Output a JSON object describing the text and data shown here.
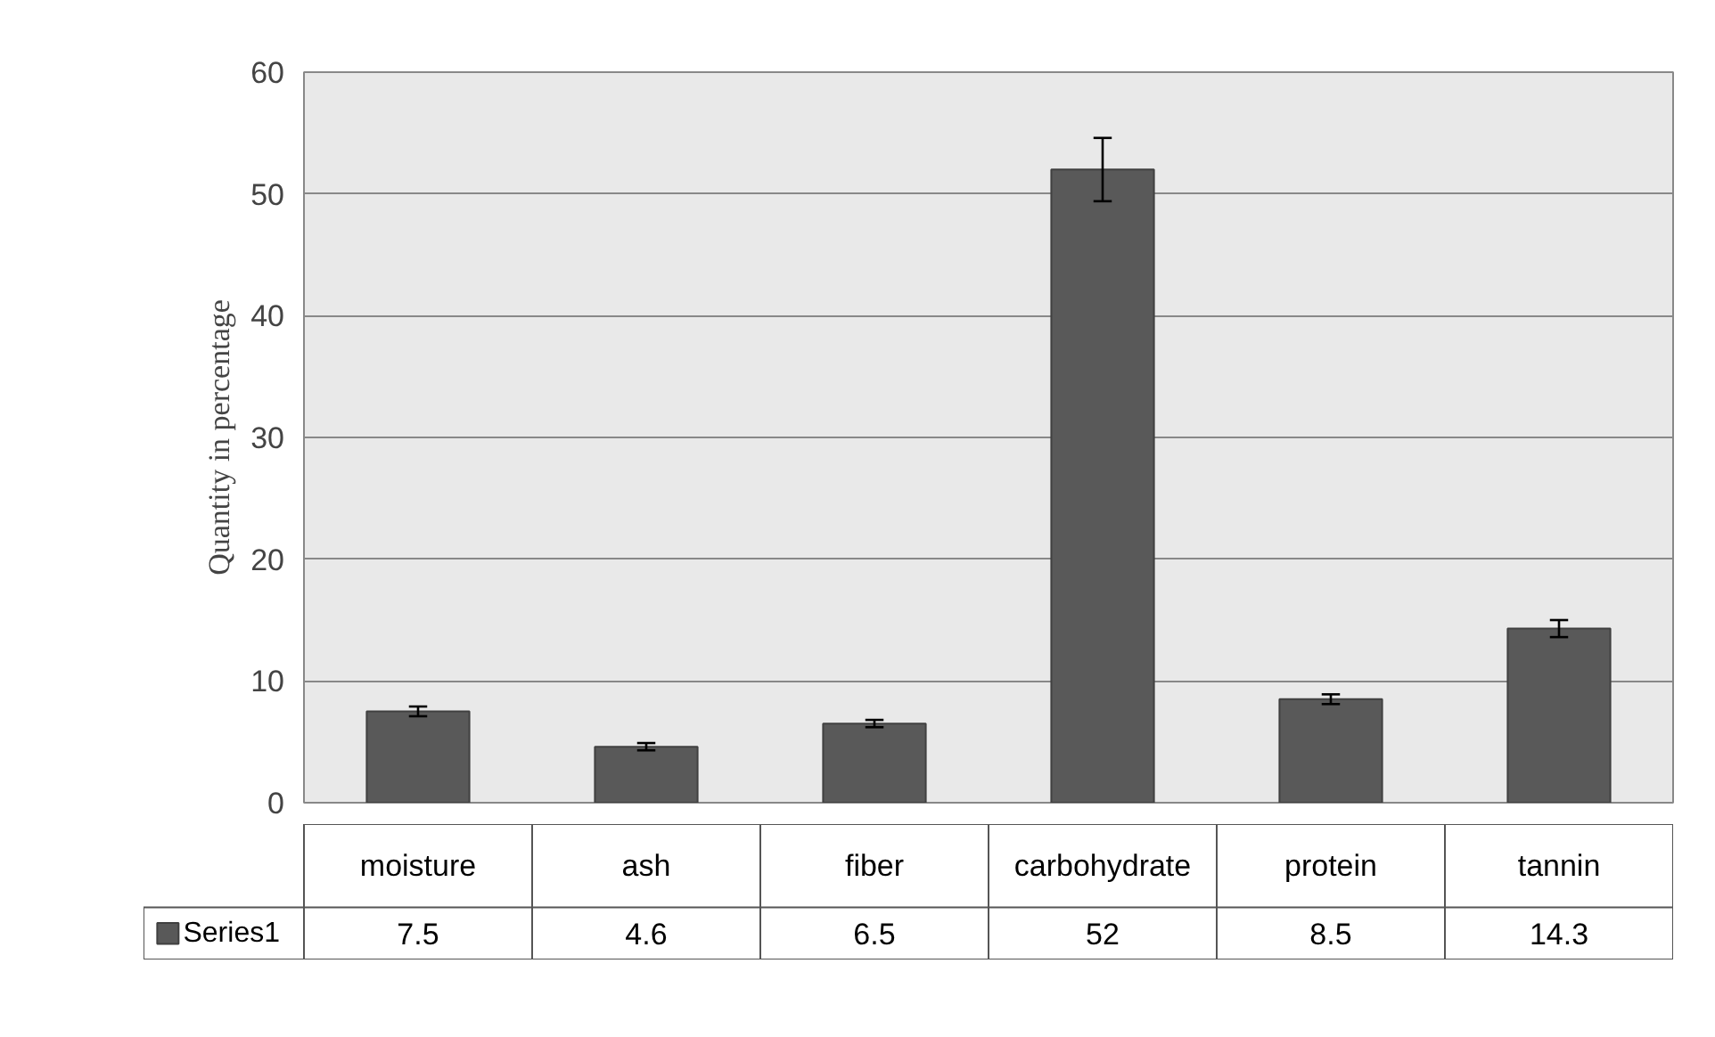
{
  "chart_data": {
    "type": "bar",
    "ylabel": "Quantity in percentage",
    "categories": [
      "moisture",
      "ash",
      "fiber",
      "carbohydrate",
      "protein",
      "tannin"
    ],
    "series": [
      {
        "name": "Series1",
        "color": "#595959",
        "values": [
          7.5,
          4.6,
          6.5,
          52,
          8.5,
          14.3
        ],
        "errors": [
          0.4,
          0.3,
          0.3,
          2.6,
          0.4,
          0.7
        ]
      }
    ],
    "ylim": [
      0,
      60
    ],
    "yticks": [
      0,
      10,
      20,
      30,
      40,
      50,
      60
    ],
    "grid": "y",
    "legend": "bottom",
    "data_labels": true
  }
}
